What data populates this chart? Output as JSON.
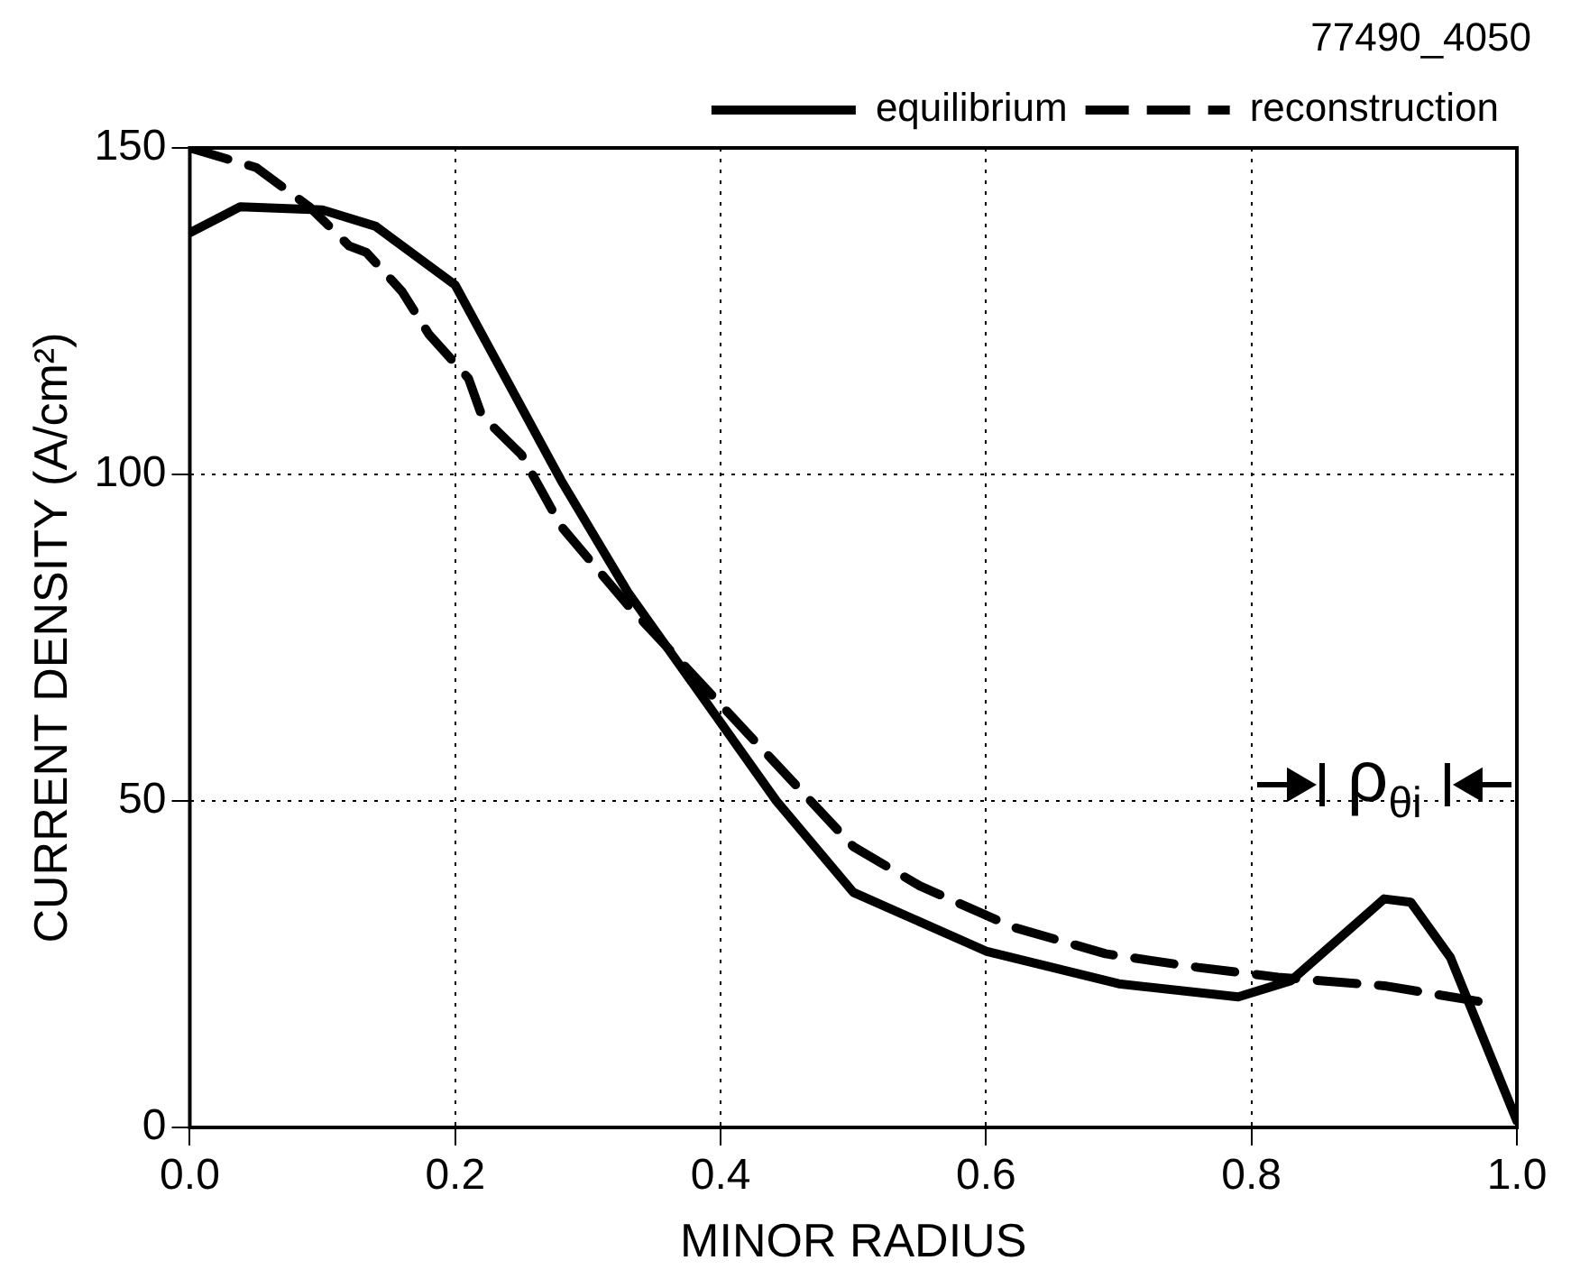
{
  "chart_data": {
    "type": "line",
    "xlabel": "MINOR RADIUS",
    "ylabel": "CURRENT DENSITY (A/cm²)",
    "annotations": [
      "77490_4050",
      "ρ$_{θi}$"
    ],
    "xlim": [
      0,
      1
    ],
    "xticks": [
      {
        "value": 0,
        "label": "0.0"
      },
      {
        "value": 0.2,
        "label": "0.2"
      },
      {
        "value": 0.4,
        "label": "0.4"
      },
      {
        "value": 0.6,
        "label": "0.6"
      },
      {
        "value": 0.8,
        "label": "0.8"
      },
      {
        "value": 1,
        "label": "1.0"
      }
    ],
    "ylim": [
      0,
      150
    ],
    "yticks": [
      0,
      50,
      100,
      150
    ],
    "grid": true,
    "legend": "top right",
    "series": [
      {
        "name": "equilibrium",
        "color": "#000000",
        "line_style": "solid",
        "x": [
          0,
          0.038,
          0.1,
          0.14,
          0.2,
          0.24,
          0.28,
          0.33,
          0.4,
          0.442,
          0.5,
          0.6,
          0.7,
          0.79,
          0.83,
          0.9,
          0.92,
          0.95,
          1.0
        ],
        "values": [
          137,
          141,
          140.5,
          138,
          129,
          114,
          99,
          82,
          62,
          50,
          36,
          27,
          22,
          20,
          22.5,
          35,
          34.5,
          26,
          1
        ]
      },
      {
        "name": "reconstruction",
        "color": "#000000",
        "line_style": "dashed",
        "x": [
          0,
          0.05,
          0.09,
          0.12,
          0.133,
          0.16,
          0.18,
          0.21,
          0.22,
          0.25,
          0.28,
          0.33,
          0.5,
          0.55,
          0.62,
          0.69,
          0.76,
          0.82,
          0.9,
          0.98
        ],
        "values": [
          150,
          147,
          141,
          135,
          134,
          128,
          121.5,
          114.7,
          109,
          103,
          92,
          80,
          43,
          37,
          30.7,
          26.6,
          24.5,
          23,
          21.7,
          19
        ]
      }
    ]
  }
}
